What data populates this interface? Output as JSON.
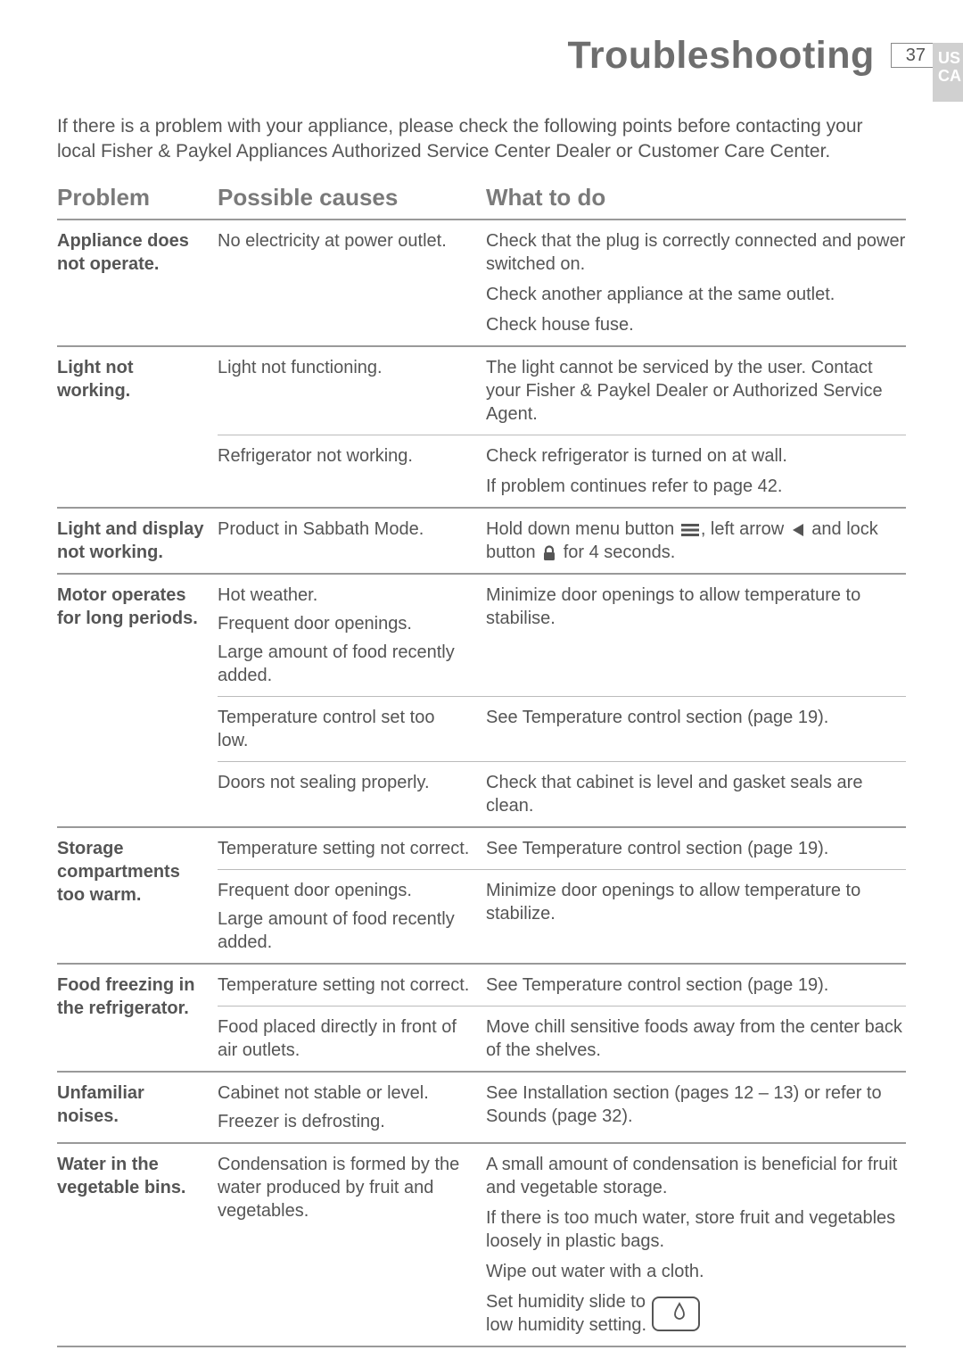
{
  "header": {
    "title": "Troubleshooting",
    "page_number": "37",
    "region1": "US",
    "region2": "CA"
  },
  "intro": "If there is a problem with your appliance, please check the following points before contacting your local Fisher & Paykel Appliances Authorized Service Center Dealer or Customer Care Center.",
  "columns": {
    "problem": "Problem",
    "causes": "Possible causes",
    "action": "What to do"
  },
  "rows": [
    {
      "problem": "Appliance does not operate.",
      "causes": [
        {
          "cause_paras": [
            "No electricity at power outlet."
          ],
          "action_paras": [
            "Check that the plug is correctly connected and power switched on.",
            "Check another appliance at the same outlet.",
            "Check house fuse."
          ]
        }
      ]
    },
    {
      "problem": "Light not working.",
      "causes": [
        {
          "cause_paras": [
            "Light not functioning."
          ],
          "action_paras": [
            "The light cannot be serviced by the user. Contact your Fisher & Paykel Dealer or Authorized Service Agent."
          ]
        },
        {
          "cause_paras": [
            "Refrigerator not working."
          ],
          "action_paras": [
            "Check refrigerator is turned on at wall.",
            "If problem continues refer to page 42."
          ]
        }
      ]
    },
    {
      "problem": "Light and display not working.",
      "causes": [
        {
          "cause_paras": [
            "Product in Sabbath Mode."
          ],
          "action_paras": [],
          "action_special": "sabbath"
        }
      ]
    },
    {
      "problem": "Motor operates for long periods.",
      "causes": [
        {
          "cause_paras": [
            "Hot weather.",
            "Frequent door openings.",
            "Large amount of food recently added."
          ],
          "action_paras": [
            "Minimize door openings to allow temperature to stabilise."
          ]
        },
        {
          "cause_paras": [
            "Temperature control set too low."
          ],
          "action_paras": [
            "See Temperature control section (page 19)."
          ]
        },
        {
          "cause_paras": [
            "Doors not sealing properly."
          ],
          "action_paras": [
            "Check that cabinet is level and gasket seals are clean."
          ]
        }
      ]
    },
    {
      "problem": "Storage compartments too warm.",
      "causes": [
        {
          "cause_paras": [
            "Temperature setting not correct."
          ],
          "action_paras": [
            "See Temperature control section (page 19)."
          ]
        },
        {
          "cause_paras": [
            "Frequent door openings.",
            "Large amount of food recently added."
          ],
          "action_paras": [
            "Minimize door openings to allow temperature to stabilize."
          ]
        }
      ]
    },
    {
      "problem": "Food freezing in the refrigerator.",
      "causes": [
        {
          "cause_paras": [
            "Temperature setting not correct."
          ],
          "action_paras": [
            "See Temperature control section (page 19)."
          ]
        },
        {
          "cause_paras": [
            "Food placed directly in front of air outlets."
          ],
          "action_paras": [
            "Move chill sensitive foods away from the center back of the shelves."
          ]
        }
      ]
    },
    {
      "problem": "Unfamiliar noises.",
      "causes": [
        {
          "cause_paras": [
            "Cabinet not stable or level.",
            "Freezer is defrosting."
          ],
          "action_paras": [
            "See Installation section (pages 12 – 13) or refer to Sounds (page 32)."
          ]
        }
      ]
    },
    {
      "problem": "Water in the vegetable bins.",
      "causes": [
        {
          "cause_paras": [
            "Condensation is formed by the water produced by fruit and vegetables."
          ],
          "action_paras": [
            "A small amount of condensation is beneficial for fruit and vegetable storage.",
            "If there is too much water, store fruit and vegetables loosely in plastic bags.",
            "Wipe out water with a cloth."
          ],
          "action_special": "humidity"
        }
      ]
    }
  ],
  "sabbath": {
    "pre": "Hold down menu button ",
    "mid1": ", left arrow ",
    "mid2": " and lock button ",
    "post": " for 4 seconds."
  },
  "humidity": {
    "line1": "Set humidity slide to",
    "line2": "low humidity setting."
  }
}
